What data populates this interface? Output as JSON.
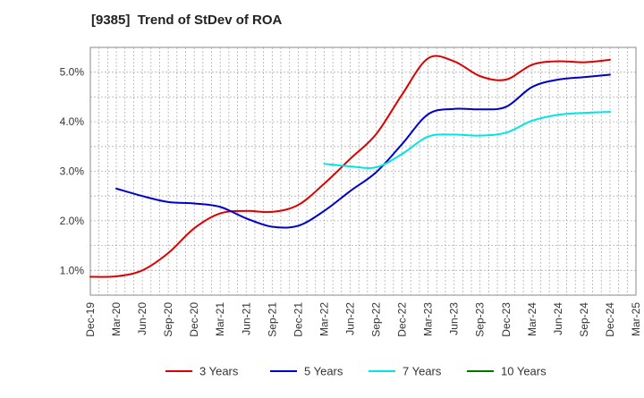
{
  "chart_data": {
    "type": "line",
    "title": "[9385]  Trend of StDev of ROA",
    "xlabel": "",
    "ylabel": "",
    "x": [
      "Dec-19",
      "Mar-20",
      "Jun-20",
      "Sep-20",
      "Dec-20",
      "Mar-21",
      "Jun-21",
      "Sep-21",
      "Dec-21",
      "Mar-22",
      "Jun-22",
      "Sep-22",
      "Dec-22",
      "Mar-23",
      "Jun-23",
      "Sep-23",
      "Dec-23",
      "Mar-24",
      "Jun-24",
      "Sep-24",
      "Dec-24",
      "Mar-25"
    ],
    "ylim": [
      0.5,
      5.5
    ],
    "yticks": [
      1.0,
      2.0,
      3.0,
      4.0,
      5.0
    ],
    "ytick_labels": [
      "1.0%",
      "2.0%",
      "3.0%",
      "4.0%",
      "5.0%"
    ],
    "grid": true,
    "legend_position": "bottom",
    "series": [
      {
        "name": "3 Years",
        "color": "#dd0000",
        "values": [
          0.87,
          0.88,
          1.0,
          1.35,
          1.85,
          2.15,
          2.2,
          2.18,
          2.32,
          2.75,
          3.25,
          3.75,
          4.55,
          5.28,
          5.22,
          4.92,
          4.85,
          5.15,
          5.22,
          5.2,
          5.25,
          null
        ]
      },
      {
        "name": "5 Years",
        "color": "#0000cc",
        "values": [
          null,
          2.65,
          2.5,
          2.38,
          2.35,
          2.28,
          2.05,
          1.88,
          1.9,
          2.2,
          2.6,
          2.98,
          3.55,
          4.15,
          4.26,
          4.25,
          4.3,
          4.7,
          4.85,
          4.9,
          4.95,
          null
        ]
      },
      {
        "name": "7 Years",
        "color": "#00e5e5",
        "values": [
          null,
          null,
          null,
          null,
          null,
          null,
          null,
          null,
          null,
          3.15,
          3.1,
          3.08,
          3.35,
          3.7,
          3.74,
          3.72,
          3.78,
          4.02,
          4.14,
          4.18,
          4.2,
          null
        ]
      },
      {
        "name": "10 Years",
        "color": "#007700",
        "values": [
          null,
          null,
          null,
          null,
          null,
          null,
          null,
          null,
          null,
          null,
          null,
          null,
          null,
          null,
          null,
          null,
          null,
          null,
          null,
          null,
          null,
          null
        ]
      }
    ]
  }
}
